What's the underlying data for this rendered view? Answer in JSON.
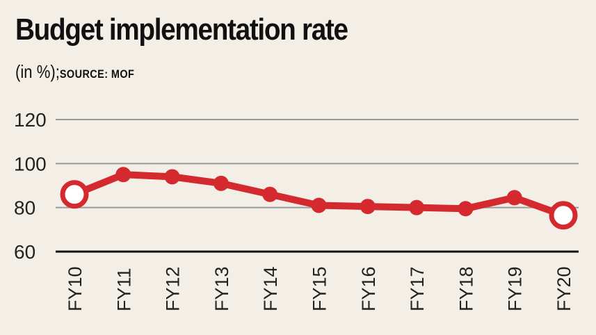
{
  "chart_data": {
    "type": "line",
    "title": "Budget implementation rate",
    "subtitle_unit": "(in %);",
    "subtitle_source": "SOURCE: MOF",
    "categories": [
      "FY10",
      "FY11",
      "FY12",
      "FY13",
      "FY14",
      "FY15",
      "FY16",
      "FY17",
      "FY18",
      "FY19",
      "FY20"
    ],
    "series": [
      {
        "values": [
          86,
          95,
          94,
          91,
          86,
          81,
          80.5,
          80,
          79.5,
          84.5,
          76.5
        ],
        "color": "#d42a2f"
      }
    ],
    "highlighted_points": [
      "FY10",
      "FY20"
    ],
    "ylim": [
      60,
      120
    ],
    "yticks": [
      60,
      80,
      100,
      120
    ],
    "grid": true,
    "background": "#f3efe7",
    "gridline_color": "#9a9a9a",
    "axis_color": "#111111"
  }
}
